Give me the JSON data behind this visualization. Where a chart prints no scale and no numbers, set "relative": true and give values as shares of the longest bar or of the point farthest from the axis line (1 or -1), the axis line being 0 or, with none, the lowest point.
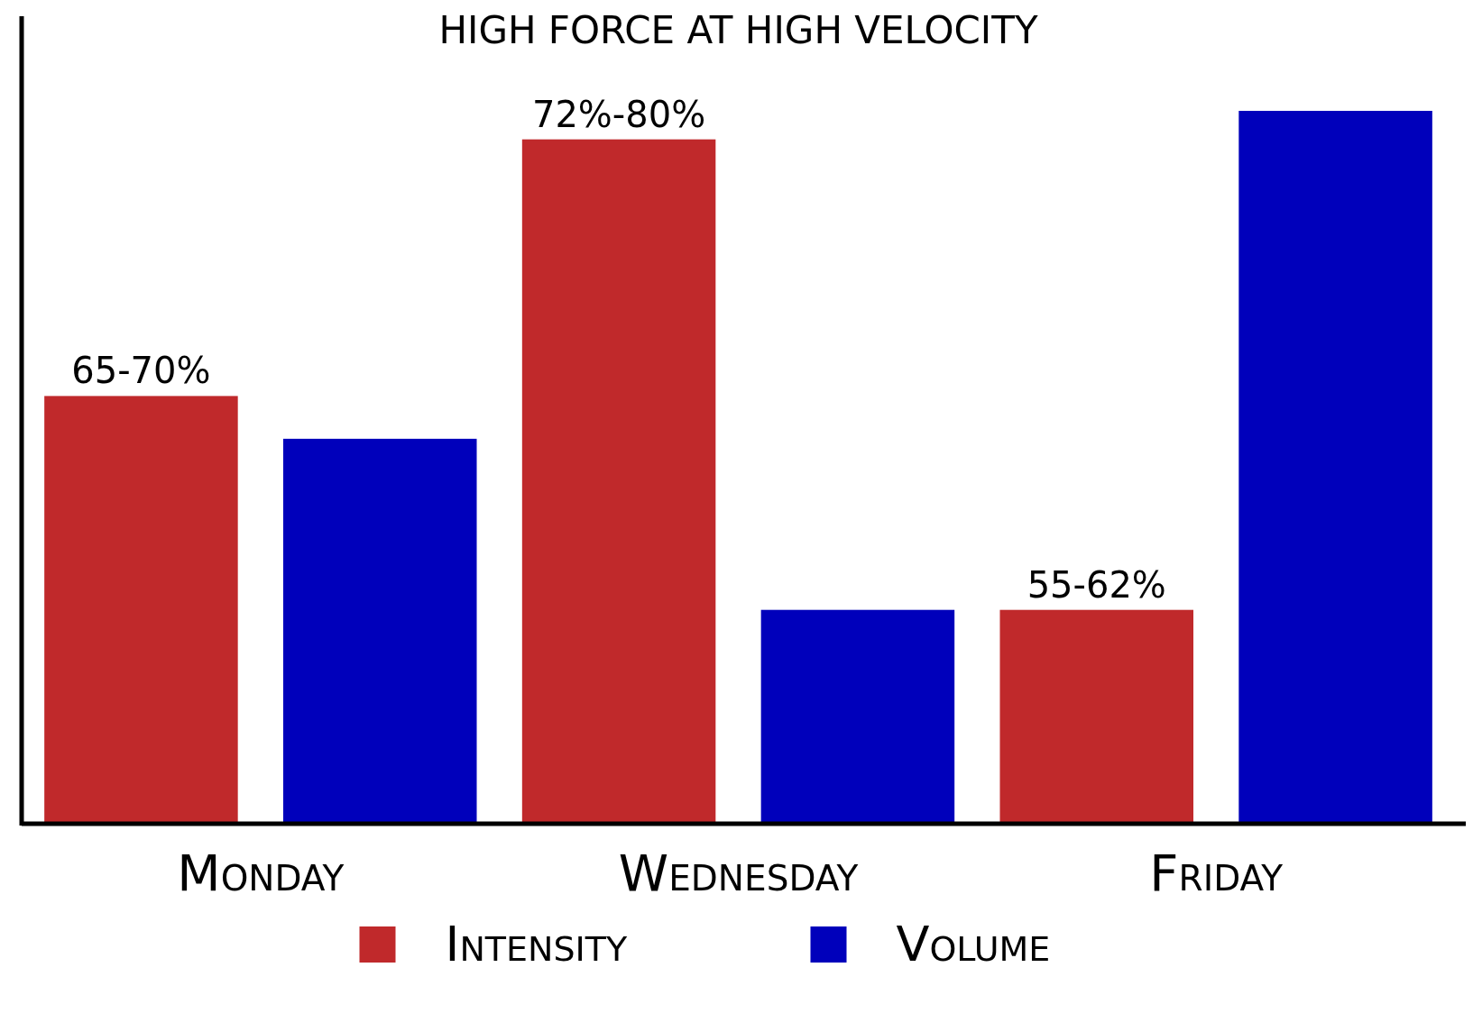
{
  "chart_data": {
    "type": "bar",
    "title": "HIGH FORCE AT HIGH VELOCITY",
    "relative": true,
    "categories": [
      "Monday",
      "Wednesday",
      "Friday"
    ],
    "legend": "bottom",
    "series": [
      {
        "name": "Intensity",
        "color": "#c0292b",
        "values": [
          0.6,
          0.96,
          0.3
        ]
      },
      {
        "name": "Volume",
        "color": "#0000bb",
        "values": [
          0.54,
          0.3,
          1
        ]
      }
    ],
    "annotations": [
      "65-70%",
      "72%-80%",
      "55-62%"
    ]
  }
}
